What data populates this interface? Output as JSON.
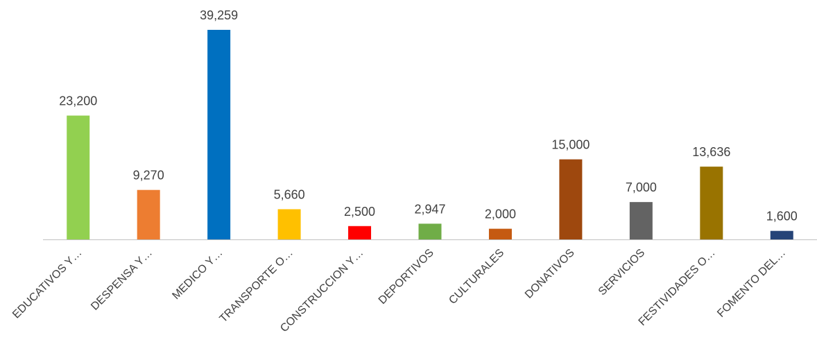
{
  "chart_data": {
    "type": "bar",
    "categories": [
      "EDUCATIVOS Y…",
      "DESPENSA Y…",
      "MEDICO Y…",
      "TRANSPORTE O…",
      "CONSTRUCCION Y…",
      "DEPORTIVOS",
      "CULTURALES",
      "DONATIVOS",
      "SERVICIOS",
      "FESTIVIDADES O…",
      "FOMENTO DEL…"
    ],
    "values": [
      23200,
      9270,
      39259,
      5660,
      2500,
      2947,
      2000,
      15000,
      7000,
      13636,
      1600
    ],
    "value_labels": [
      "23,200",
      "9,270",
      "39,259",
      "5,660",
      "2,500",
      "2,947",
      "2,000",
      "15,000",
      "7,000",
      "13,636",
      "1,600"
    ],
    "colors": [
      "#92D050",
      "#ED7D31",
      "#0070C0",
      "#FFC000",
      "#FF0000",
      "#70AD47",
      "#C55A11",
      "#9E480E",
      "#636363",
      "#997300",
      "#264478"
    ],
    "axis_color": "#BFBFBF",
    "ylim": [
      0,
      39259
    ],
    "title": "",
    "xlabel": "",
    "ylabel": "",
    "grid": false,
    "legend": "none"
  }
}
